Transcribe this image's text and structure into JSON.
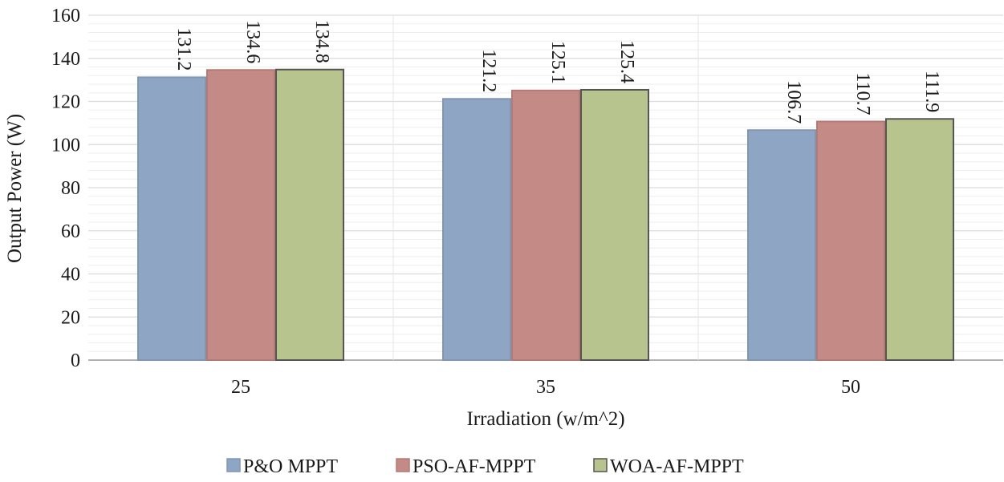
{
  "chart_data": {
    "type": "bar",
    "title": "",
    "xlabel": "Irradiation (w/m^2)",
    "ylabel": "Output Power (W)",
    "categories": [
      "25",
      "35",
      "50"
    ],
    "ylim": [
      0,
      160
    ],
    "yticks": [
      0,
      20,
      40,
      60,
      80,
      100,
      120,
      140,
      160
    ],
    "grid": true,
    "legend_position": "bottom",
    "series": [
      {
        "name": "P&O MPPT",
        "color": "#8fa5c4",
        "values": [
          131.2,
          121.2,
          106.7
        ],
        "labels": [
          "131.2",
          "121.2",
          "106.7"
        ]
      },
      {
        "name": "PSO-AF-MPPT",
        "color": "#c48a86",
        "values": [
          134.6,
          125.1,
          110.7
        ],
        "labels": [
          "134.6",
          "125.1",
          "110.7"
        ]
      },
      {
        "name": "WOA-AF-MPPT",
        "color": "#b8c48e",
        "values": [
          134.8,
          125.4,
          111.9
        ],
        "labels": [
          "134.8",
          "125.4",
          "111.9"
        ]
      }
    ]
  }
}
